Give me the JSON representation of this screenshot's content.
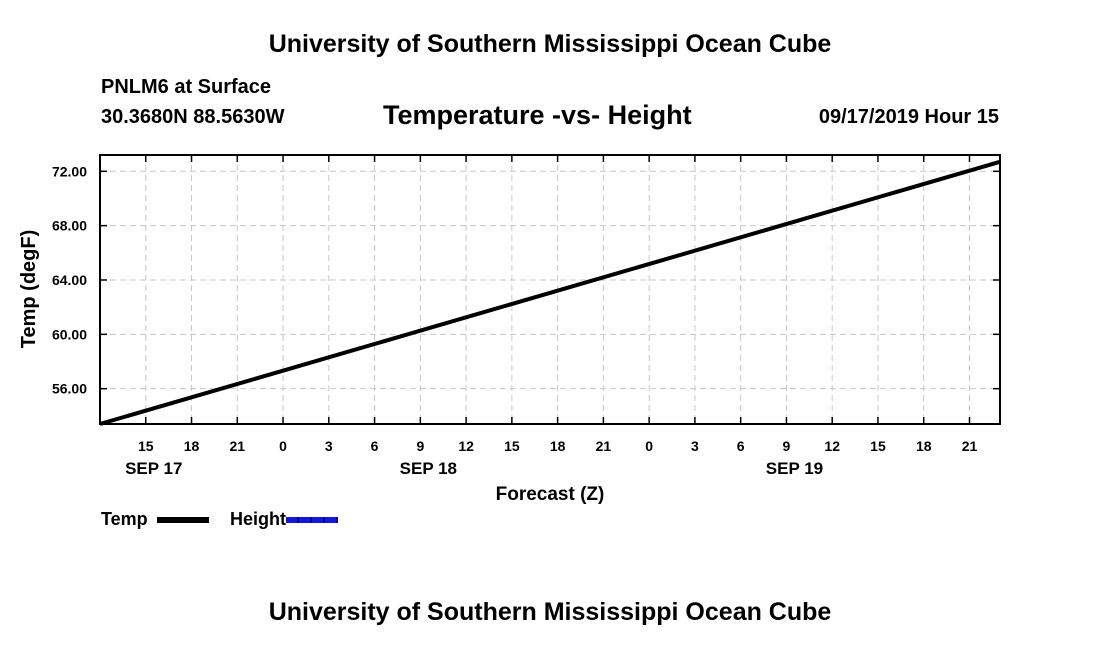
{
  "header": {
    "title_top": "University of Southern Mississippi Ocean Cube",
    "station": "PNLM6 at Surface",
    "coords": "30.3680N 88.5630W",
    "subtitle": "Temperature -vs- Height",
    "datetime": "09/17/2019 Hour 15"
  },
  "footer": {
    "title_bottom": "University of Southern Mississippi Ocean Cube"
  },
  "legend": {
    "items": [
      {
        "label": "Temp",
        "color": "#000000",
        "style": "solid"
      },
      {
        "label": "Height",
        "color": "#1515e0",
        "style": "dashed"
      }
    ]
  },
  "chart_data": {
    "type": "line",
    "xlabel": "Forecast (Z)",
    "ylabel": "Temp (degF)",
    "x_unit": "hours after 09/17/2019 00Z",
    "xlim": [
      12,
      71
    ],
    "ylim": [
      53.4,
      73.2
    ],
    "x_ticks": [
      15,
      18,
      21,
      24,
      27,
      30,
      33,
      36,
      39,
      42,
      45,
      48,
      51,
      54,
      57,
      60,
      63,
      66,
      69
    ],
    "x_tick_labels": [
      "15",
      "18",
      "21",
      "0",
      "3",
      "6",
      "9",
      "12",
      "15",
      "18",
      "21",
      "0",
      "3",
      "6",
      "9",
      "12",
      "15",
      "18",
      "21"
    ],
    "day_labels": [
      {
        "x": 15,
        "label": "SEP 17"
      },
      {
        "x": 33,
        "label": "SEP 18"
      },
      {
        "x": 57,
        "label": "SEP 19"
      }
    ],
    "y_ticks": [
      56,
      60,
      64,
      68,
      72
    ],
    "y_tick_labels": [
      "56.00",
      "60.00",
      "64.00",
      "68.00",
      "72.00"
    ],
    "grid": true,
    "series": [
      {
        "name": "Temp",
        "color": "#000000",
        "x": [
          12,
          71
        ],
        "y": [
          53.4,
          72.7
        ]
      }
    ]
  }
}
